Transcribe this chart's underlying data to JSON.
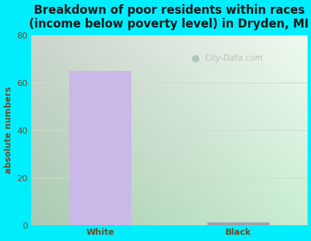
{
  "categories": [
    "White",
    "Black"
  ],
  "values": [
    65,
    1
  ],
  "bar_colors": [
    "#c9b8e8",
    "#a0a0b0"
  ],
  "title": "Breakdown of poor residents within races\n(income below poverty level) in Dryden, MI",
  "ylabel": "absolute numbers",
  "ylim": [
    0,
    80
  ],
  "yticks": [
    0,
    20,
    40,
    60,
    80
  ],
  "background_outer": "#00eeff",
  "grid_color": "#ccddcc",
  "title_fontsize": 12,
  "ylabel_fontsize": 9,
  "tick_fontsize": 9,
  "watermark": "City-Data.com",
  "bg_left": "#cceedd",
  "bg_right": "#e8f5e8",
  "bg_top": "#f0faf0",
  "bg_bottom": "#c8eedd"
}
